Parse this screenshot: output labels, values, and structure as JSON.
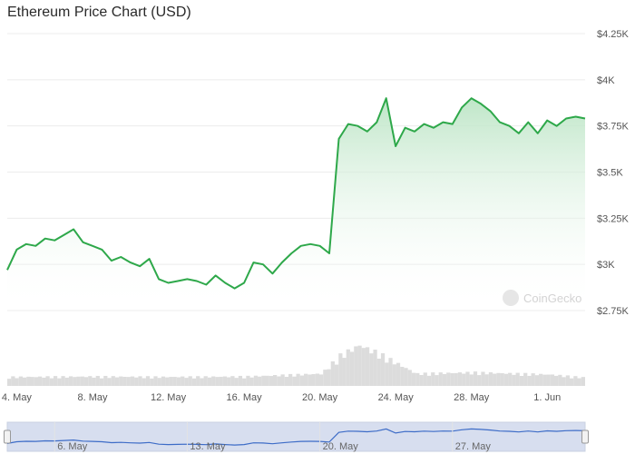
{
  "title": "Ethereum Price Chart (USD)",
  "watermark": "CoinGecko",
  "colors": {
    "line": "#2ea84a",
    "area_top": "#bfe6c8",
    "grid": "#ececec",
    "volume": "#dcdcdc",
    "navigator_fill": "#d7deef",
    "navigator_line": "#3d6cc7"
  },
  "chart_data": {
    "type": "area",
    "title": "Ethereum Price Chart (USD)",
    "y_axis": {
      "min": 2750,
      "max": 4250,
      "position": "right",
      "ticks": [
        2750,
        3000,
        3250,
        3500,
        3750,
        4000,
        4250
      ],
      "tick_labels": [
        "$2.75K",
        "$3K",
        "$3.25K",
        "$3.5K",
        "$3.75K",
        "$4K",
        "$4.25K"
      ]
    },
    "x_axis": {
      "start": "2024-05-03T12:00",
      "end": "2024-06-03T00:00",
      "ticks": [
        "2024-05-04",
        "2024-05-08",
        "2024-05-12",
        "2024-05-16",
        "2024-05-20",
        "2024-05-24",
        "2024-05-28",
        "2024-06-01"
      ],
      "tick_labels": [
        "4. May",
        "8. May",
        "12. May",
        "16. May",
        "20. May",
        "24. May",
        "28. May",
        "1. Jun"
      ]
    },
    "grid": true,
    "series": [
      {
        "x": [
          "2024-05-03T12:00",
          "2024-05-04T00:00",
          "2024-05-04T12:00",
          "2024-05-05T00:00",
          "2024-05-05T12:00",
          "2024-05-06T00:00",
          "2024-05-06T12:00",
          "2024-05-07T00:00",
          "2024-05-07T12:00",
          "2024-05-08T00:00",
          "2024-05-08T12:00",
          "2024-05-09T00:00",
          "2024-05-09T12:00",
          "2024-05-10T00:00",
          "2024-05-10T12:00",
          "2024-05-11T00:00",
          "2024-05-11T12:00",
          "2024-05-12T00:00",
          "2024-05-12T12:00",
          "2024-05-13T00:00",
          "2024-05-13T12:00",
          "2024-05-14T00:00",
          "2024-05-14T12:00",
          "2024-05-15T00:00",
          "2024-05-15T12:00",
          "2024-05-16T00:00",
          "2024-05-16T12:00",
          "2024-05-17T00:00",
          "2024-05-17T12:00",
          "2024-05-18T00:00",
          "2024-05-18T12:00",
          "2024-05-19T00:00",
          "2024-05-19T12:00",
          "2024-05-20T00:00",
          "2024-05-20T12:00",
          "2024-05-21T00:00",
          "2024-05-21T12:00",
          "2024-05-22T00:00",
          "2024-05-22T12:00",
          "2024-05-23T00:00",
          "2024-05-23T12:00",
          "2024-05-24T00:00",
          "2024-05-24T12:00",
          "2024-05-25T00:00",
          "2024-05-25T12:00",
          "2024-05-26T00:00",
          "2024-05-26T12:00",
          "2024-05-27T00:00",
          "2024-05-27T12:00",
          "2024-05-28T00:00",
          "2024-05-28T12:00",
          "2024-05-29T00:00",
          "2024-05-29T12:00",
          "2024-05-30T00:00",
          "2024-05-30T12:00",
          "2024-05-31T00:00",
          "2024-05-31T12:00",
          "2024-06-01T00:00",
          "2024-06-01T12:00",
          "2024-06-02T00:00",
          "2024-06-02T12:00",
          "2024-06-03T00:00"
        ],
        "y": [
          2970,
          3080,
          3110,
          3100,
          3140,
          3130,
          3160,
          3190,
          3120,
          3100,
          3080,
          3020,
          3040,
          3010,
          2990,
          3030,
          2920,
          2900,
          2910,
          2920,
          2910,
          2890,
          2940,
          2900,
          2870,
          2900,
          3010,
          3000,
          2950,
          3010,
          3060,
          3100,
          3110,
          3100,
          3060,
          3680,
          3760,
          3750,
          3720,
          3770,
          3900,
          3640,
          3740,
          3720,
          3760,
          3740,
          3770,
          3760,
          3850,
          3900,
          3870,
          3830,
          3770,
          3750,
          3710,
          3770,
          3710,
          3780,
          3750,
          3790,
          3800,
          3790
        ]
      }
    ],
    "volume": {
      "x": [
        "2024-05-04",
        "2024-05-08",
        "2024-05-12",
        "2024-05-16",
        "2024-05-20",
        "2024-05-21",
        "2024-05-22",
        "2024-05-23",
        "2024-05-24",
        "2024-05-25",
        "2024-05-28",
        "2024-06-01",
        "2024-06-03"
      ],
      "relative": [
        0.22,
        0.23,
        0.22,
        0.23,
        0.3,
        0.75,
        1.0,
        0.8,
        0.55,
        0.3,
        0.33,
        0.28,
        0.2
      ]
    },
    "navigator": {
      "tick_labels": [
        "6. May",
        "13. May",
        "20. May",
        "27. May"
      ],
      "tick_dates": [
        "2024-05-06",
        "2024-05-13",
        "2024-05-20",
        "2024-05-27"
      ]
    }
  }
}
